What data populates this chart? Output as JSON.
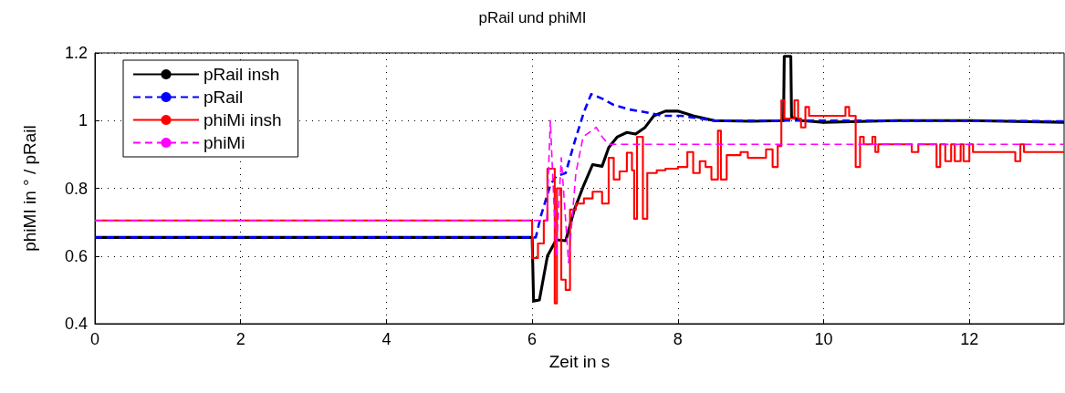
{
  "chart_data": {
    "type": "line",
    "title": "pRail und phiMI",
    "xlabel": "Zeit in s",
    "ylabel": "phiMI in ° / pRail",
    "xlim": [
      0,
      13.3
    ],
    "xticks": [
      0,
      2,
      4,
      6,
      8,
      10,
      12
    ],
    "ylim": [
      0.4,
      1.2
    ],
    "yticks": [
      0.4,
      0.6,
      0.8,
      1,
      1.2
    ],
    "grid": true,
    "legend": "top left",
    "series": [
      {
        "name": "pRail insh",
        "color": "#000000",
        "line_style": "solid",
        "x": [
          0,
          6.0,
          6.02,
          6.1,
          6.21,
          6.33,
          6.46,
          6.58,
          6.71,
          6.83,
          6.96,
          7.05,
          7.17,
          7.3,
          7.42,
          7.55,
          7.67,
          7.83,
          8.0,
          8.21,
          8.5,
          9.0,
          9.45,
          9.46,
          9.55,
          9.56,
          9.7,
          10,
          11,
          12,
          13.3
        ],
        "values": [
          0.655,
          0.655,
          0.467,
          0.47,
          0.6,
          0.648,
          0.645,
          0.737,
          0.81,
          0.87,
          0.865,
          0.92,
          0.952,
          0.965,
          0.96,
          0.98,
          1.014,
          1.028,
          1.028,
          1.014,
          1.0,
          0.998,
          1.0,
          1.19,
          1.19,
          1.01,
          1.0,
          0.995,
          1.0,
          1.0,
          0.995
        ]
      },
      {
        "name": "pRail",
        "color": "#0000ff",
        "line_style": "dashed",
        "x": [
          0,
          6.05,
          6.12,
          6.25,
          6.33,
          6.46,
          6.58,
          6.71,
          6.81,
          6.96,
          7.12,
          7.33,
          7.55,
          7.8,
          8.05,
          8.5,
          10,
          13.3
        ],
        "values": [
          0.655,
          0.655,
          0.718,
          0.81,
          0.836,
          0.845,
          0.935,
          1.025,
          1.078,
          1.065,
          1.046,
          1.033,
          1.025,
          1.014,
          1.014,
          1.0,
          1.0,
          0.998
        ]
      },
      {
        "name": "phiMi insh",
        "color": "#ff0000",
        "line_style": "solid",
        "type": "step",
        "x": [
          0,
          6.0,
          6.08,
          6.16,
          6.21,
          6.31,
          6.34,
          6.4,
          6.46,
          6.52,
          6.6,
          6.71,
          6.83,
          6.96,
          7.05,
          7.12,
          7.2,
          7.3,
          7.37,
          7.4,
          7.44,
          7.52,
          7.58,
          7.71,
          7.83,
          8.0,
          8.13,
          8.21,
          8.3,
          8.38,
          8.46,
          8.55,
          8.59,
          8.67,
          8.86,
          8.96,
          9.21,
          9.3,
          9.37,
          9.42,
          9.46,
          9.6,
          9.65,
          9.69,
          9.75,
          9.8,
          10.3,
          10.35,
          10.44,
          10.5,
          10.55,
          10.67,
          10.71,
          10.75,
          11.21,
          11.3,
          11.55,
          11.6,
          11.67,
          11.75,
          11.8,
          11.88,
          11.92,
          12.0,
          12.05,
          12.63,
          12.7,
          12.75,
          13.3
        ],
        "values": [
          0.705,
          0.594,
          0.637,
          0.705,
          0.858,
          0.46,
          0.8,
          0.53,
          0.5,
          0.737,
          0.755,
          0.77,
          0.79,
          0.755,
          0.89,
          0.826,
          0.85,
          0.905,
          0.853,
          0.71,
          0.952,
          0.71,
          0.845,
          0.853,
          0.858,
          0.863,
          0.907,
          0.845,
          0.88,
          0.863,
          0.826,
          0.97,
          0.826,
          0.898,
          0.907,
          0.89,
          0.915,
          0.863,
          0.925,
          1.06,
          1.006,
          1.06,
          1.006,
          0.98,
          1.04,
          1.014,
          1.04,
          1.014,
          0.863,
          0.952,
          0.93,
          0.952,
          0.907,
          0.93,
          0.907,
          0.93,
          0.863,
          0.93,
          0.88,
          0.93,
          0.88,
          0.93,
          0.88,
          0.93,
          0.907,
          0.88,
          0.93,
          0.907,
          0.907
        ]
      },
      {
        "name": "phiMi",
        "color": "#ff00ff",
        "line_style": "dashed",
        "x": [
          0,
          6.2,
          6.25,
          6.33,
          6.4,
          6.5,
          6.6,
          6.7,
          6.88,
          6.96,
          7.05,
          13.3
        ],
        "values": [
          0.705,
          0.705,
          1.0,
          0.6,
          0.89,
          0.58,
          0.845,
          0.952,
          0.98,
          0.952,
          0.93,
          0.93
        ]
      }
    ]
  }
}
